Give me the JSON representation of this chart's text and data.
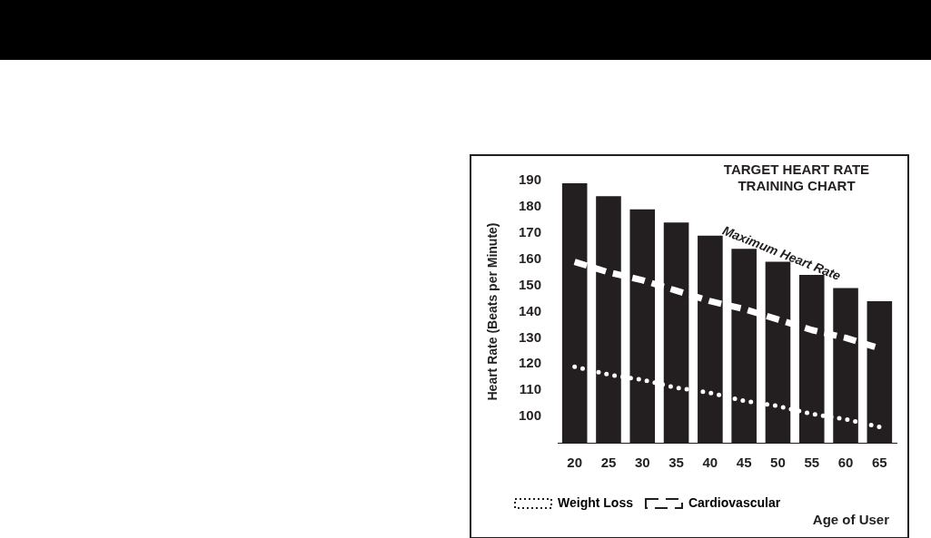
{
  "chart_data": {
    "type": "bar",
    "title": "TARGET HEART RATE TRAINING CHART",
    "xlabel": "Age of User",
    "ylabel": "Heart Rate (Beats per Minute)",
    "categories": [
      "20",
      "25",
      "30",
      "35",
      "40",
      "45",
      "50",
      "55",
      "60",
      "65"
    ],
    "series": [
      {
        "color": "#231f20",
        "values": [
          189,
          184,
          179,
          174,
          169,
          164,
          159,
          154,
          149,
          144
        ]
      },
      {
        "type": "line",
        "name": "Weight Loss",
        "color": "#ffffff",
        "line_style": "dotted",
        "values": [
          119,
          116,
          114,
          111,
          109,
          106,
          104,
          101,
          99,
          96
        ]
      },
      {
        "type": "line",
        "name": "Cardiovascular",
        "color": "#ffffff",
        "line_style": "dashed",
        "values": [
          159,
          155,
          152,
          148,
          144,
          141,
          137,
          133,
          130,
          126
        ]
      }
    ],
    "ylim": [
      90,
      190
    ],
    "yticks": [
      100,
      110,
      120,
      130,
      140,
      150,
      160,
      170,
      180,
      190
    ],
    "grid": false,
    "legend": "bottom left",
    "marker": "none",
    "annotations": [
      "Maximum Heart Rate"
    ]
  }
}
